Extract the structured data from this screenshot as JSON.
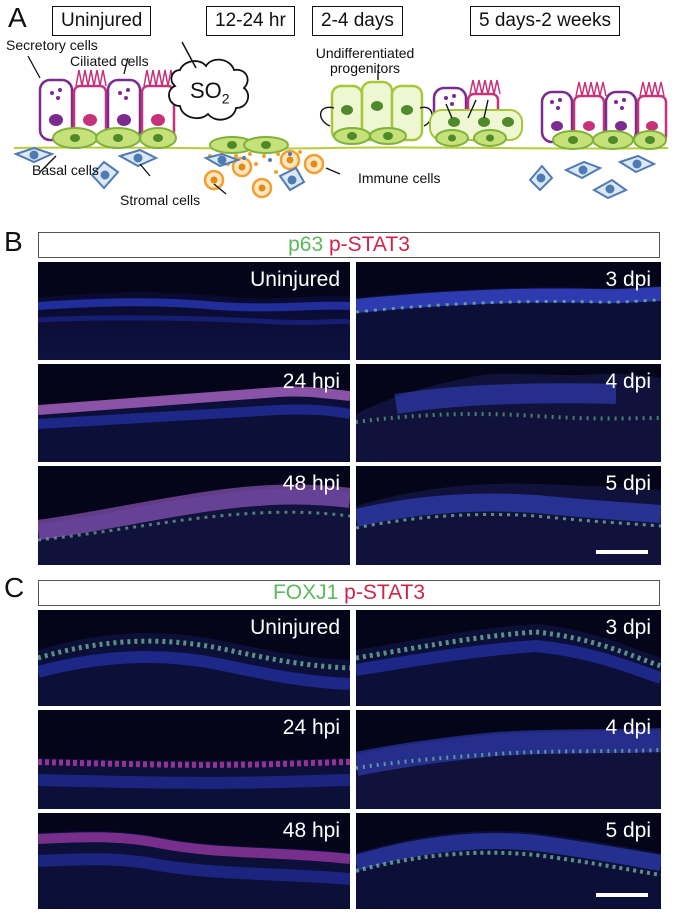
{
  "panel_a": {
    "letter": "A",
    "stages": [
      "Uninjured",
      "12-24 hr",
      "2-4 days",
      "5 days-2 weeks"
    ],
    "labels": {
      "secretory": "Secretory cells",
      "ciliated": "Ciliated cells",
      "so2_main": "SO",
      "so2_sub": "2",
      "undiff_line1": "Undifferentiated",
      "undiff_line2": "progenitors",
      "basal": "Basal cells",
      "stromal": "Stromal cells",
      "immune": "Immune cells"
    },
    "colors": {
      "secretory_outline": "#7b2a8f",
      "ciliated_outline": "#c8327a",
      "basal_fill": "#c6e07a",
      "basal_outline": "#7fb23a",
      "stromal_outline": "#4f7bb5",
      "immune_outline": "#f0a030",
      "membrane": "#b9cc3a"
    }
  },
  "panel_b": {
    "letter": "B",
    "legend_green": "p63",
    "legend_red": "p-STAT3",
    "images": {
      "l1": "Uninjured",
      "r1": "3 dpi",
      "l2": "24 hpi",
      "r2": "4 dpi",
      "l3": "48 hpi",
      "r3": "5 dpi"
    }
  },
  "panel_c": {
    "letter": "C",
    "legend_green": "FOXJ1",
    "legend_red": "p-STAT3",
    "images": {
      "l1": "Uninjured",
      "r1": "3 dpi",
      "l2": "24 hpi",
      "r2": "4 dpi",
      "l3": "48 hpi",
      "r3": "5 dpi"
    }
  }
}
